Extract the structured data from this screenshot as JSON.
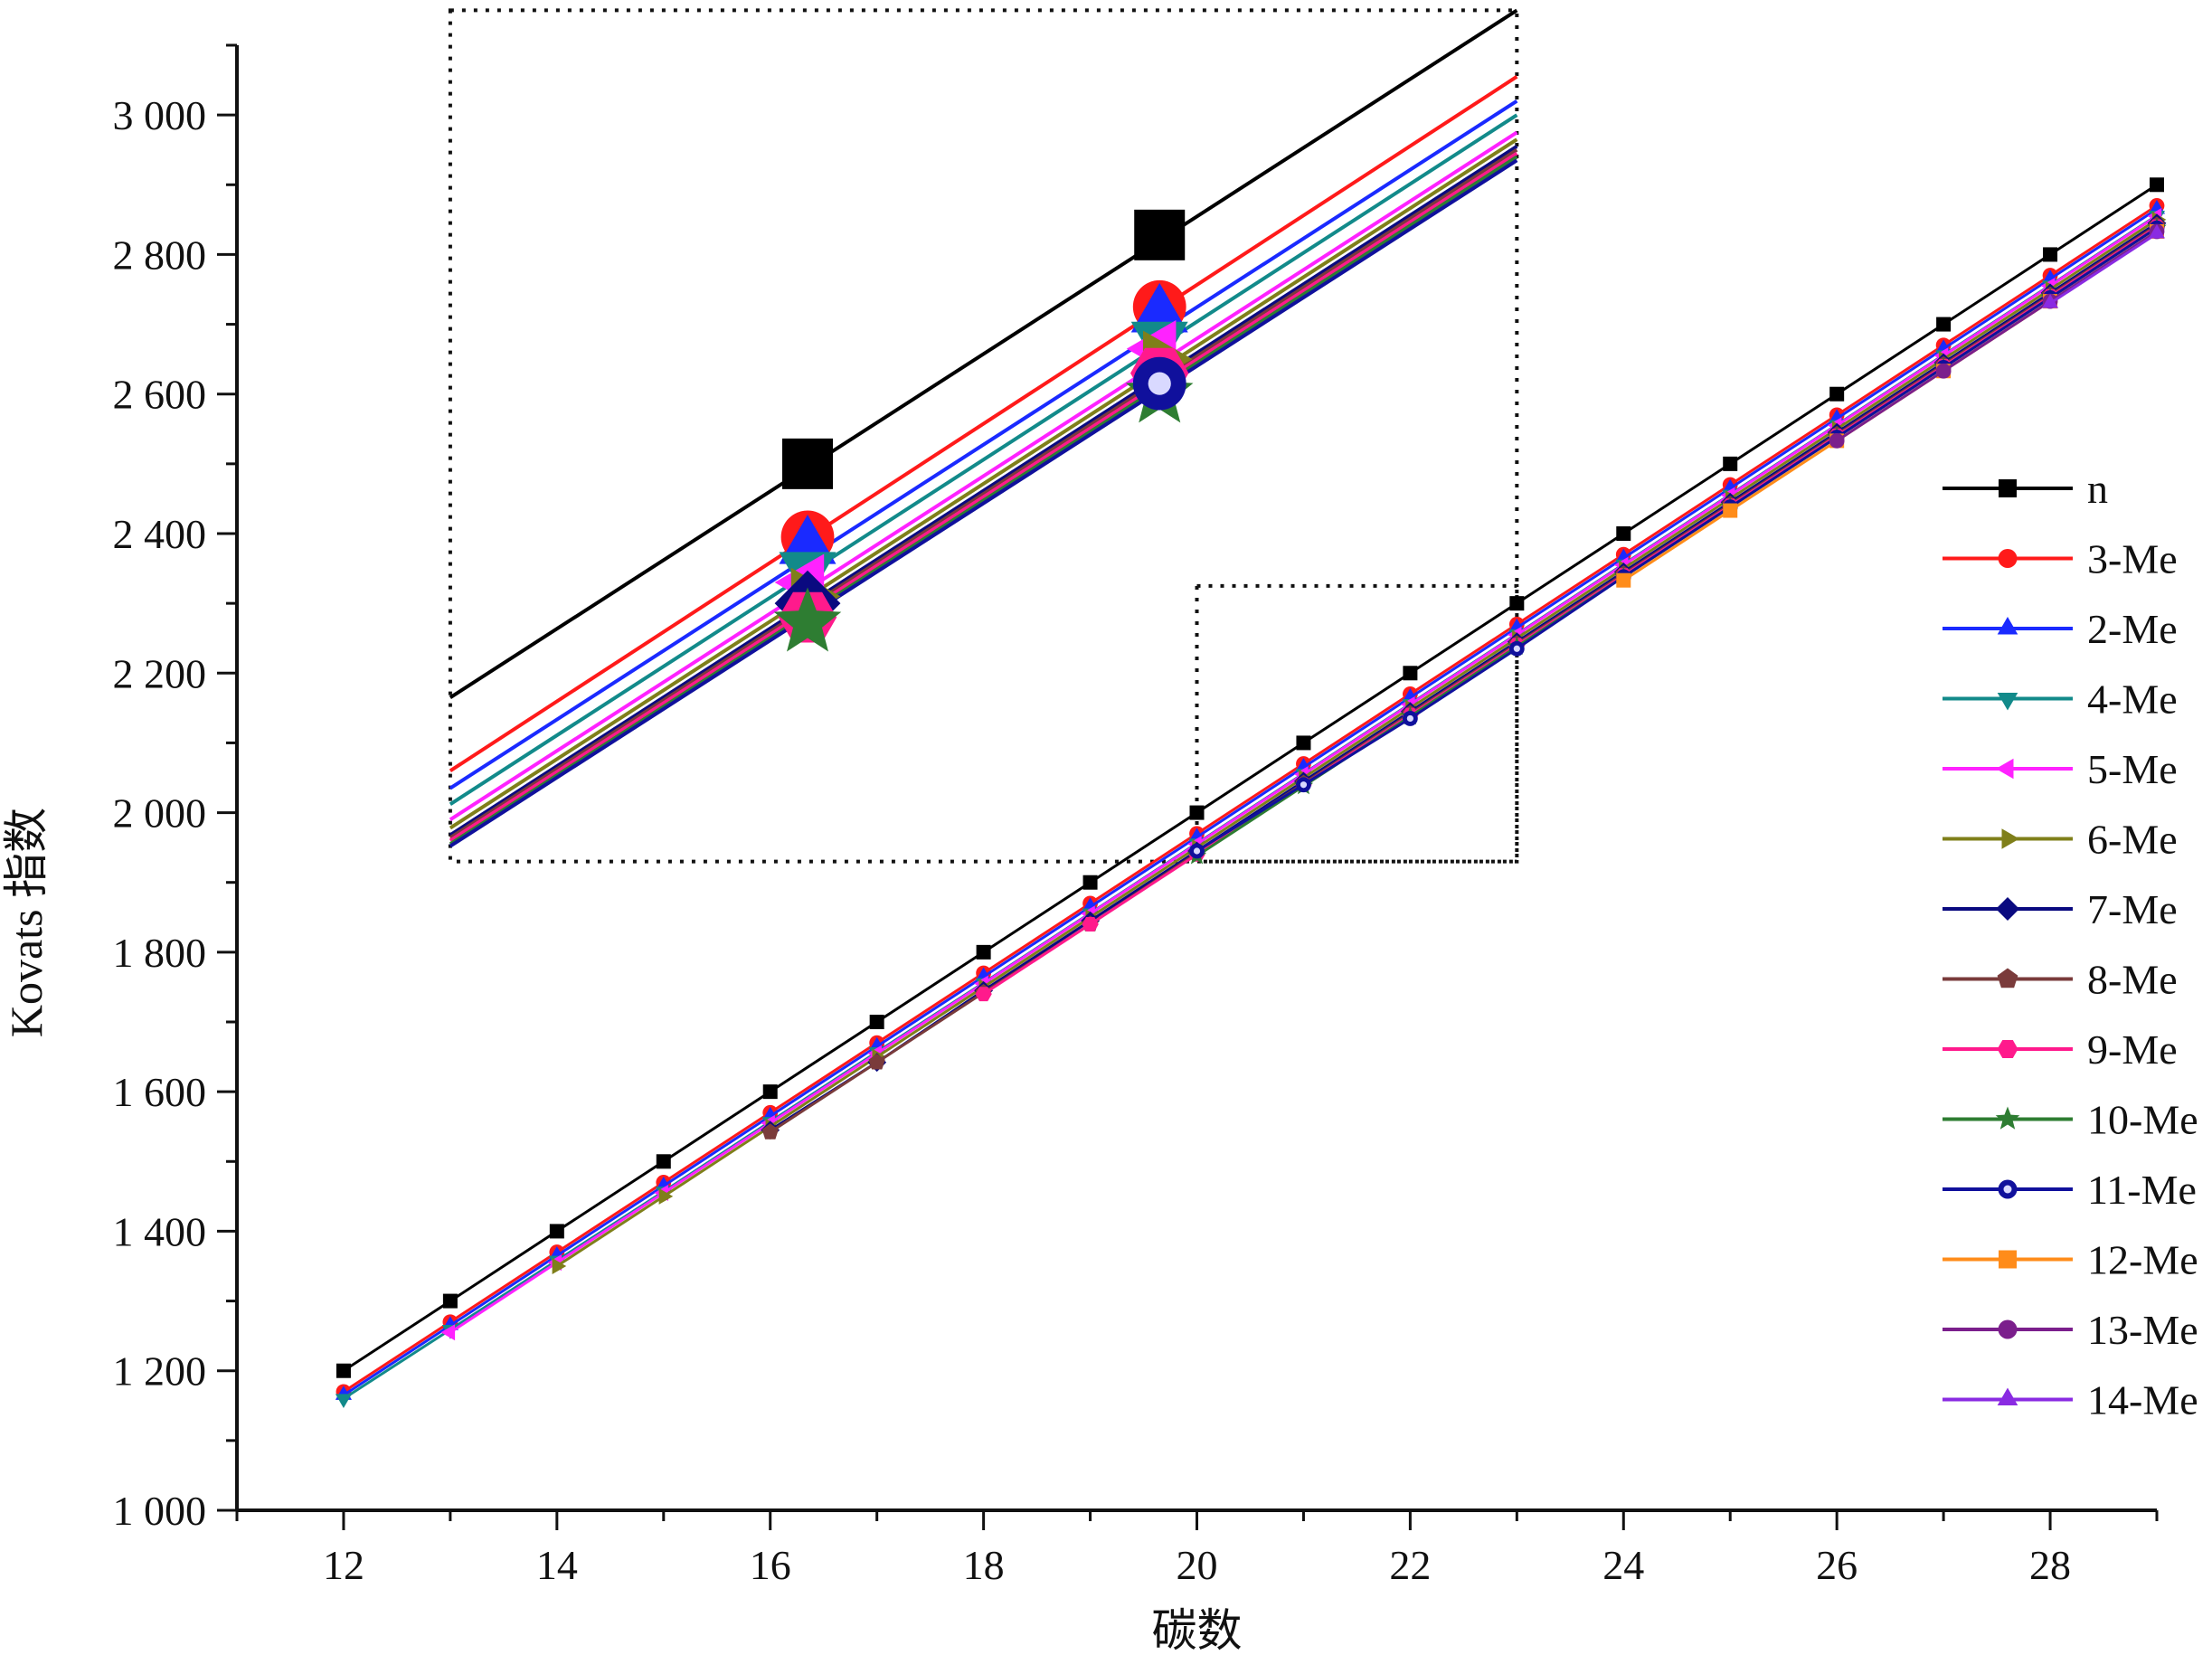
{
  "chart_data": {
    "type": "line",
    "xlabel": "碳数",
    "ylabel": "Kovats 指数",
    "xlim": [
      11,
      29
    ],
    "ylim": [
      1000,
      3100
    ],
    "x_ticks": [
      12,
      14,
      16,
      18,
      20,
      22,
      24,
      26,
      28
    ],
    "x_tick_labels": [
      "12",
      "14",
      "16",
      "18",
      "20",
      "22",
      "24",
      "26",
      "28"
    ],
    "y_ticks": [
      1000,
      1200,
      1400,
      1600,
      1800,
      2000,
      2200,
      2400,
      2600,
      2800,
      3000
    ],
    "y_tick_labels": [
      "1 000",
      "1 200",
      "1 400",
      "1 600",
      "1 800",
      "2 000",
      "2 200",
      "2 400",
      "2 600",
      "2 800",
      "3 000"
    ],
    "grid": false,
    "legend_position": "right",
    "series": [
      {
        "name": "n",
        "color": "#000000",
        "marker": "square",
        "x": [
          12,
          13,
          14,
          15,
          16,
          17,
          18,
          19,
          20,
          21,
          22,
          23,
          24,
          25,
          26,
          27,
          28,
          29
        ],
        "values": [
          1200,
          1300,
          1400,
          1500,
          1600,
          1700,
          1800,
          1900,
          2000,
          2100,
          2200,
          2300,
          2400,
          2500,
          2600,
          2700,
          2800,
          2900
        ]
      },
      {
        "name": "3-Me",
        "color": "#ff1a1a",
        "marker": "circle",
        "x": [
          12,
          13,
          14,
          15,
          16,
          17,
          18,
          19,
          20,
          21,
          22,
          23,
          24,
          25,
          26,
          27,
          28,
          29
        ],
        "values": [
          1170,
          1270,
          1370,
          1470,
          1570,
          1670,
          1770,
          1870,
          1970,
          2070,
          2170,
          2270,
          2370,
          2470,
          2570,
          2670,
          2770,
          2870
        ]
      },
      {
        "name": "2-Me",
        "color": "#1a2aff",
        "marker": "triangle-up",
        "x": [
          12,
          13,
          14,
          15,
          16,
          17,
          18,
          19,
          20,
          21,
          22,
          23,
          24,
          25,
          26,
          27,
          28,
          29
        ],
        "values": [
          1165,
          1265,
          1365,
          1465,
          1565,
          1665,
          1765,
          1865,
          1965,
          2065,
          2165,
          2265,
          2365,
          2465,
          2565,
          2665,
          2765,
          2865
        ]
      },
      {
        "name": "4-Me",
        "color": "#128a8a",
        "marker": "triangle-down",
        "x": [
          12,
          13,
          14,
          15,
          16,
          17,
          18,
          19,
          20,
          21,
          22,
          23,
          24,
          25,
          26,
          27,
          28,
          29
        ],
        "values": [
          1160,
          1259,
          1358,
          1457,
          1557,
          1657,
          1756,
          1856,
          1956,
          2056,
          2156,
          2256,
          2356,
          2456,
          2556,
          2656,
          2756,
          2856
        ]
      },
      {
        "name": "5-Me",
        "color": "#ff22ff",
        "marker": "triangle-left",
        "x": [
          13,
          14,
          15,
          16,
          17,
          18,
          19,
          20,
          21,
          22,
          23,
          24,
          25,
          26,
          27,
          28,
          29
        ],
        "values": [
          1255,
          1355,
          1455,
          1555,
          1655,
          1755,
          1855,
          1955,
          2055,
          2155,
          2255,
          2355,
          2455,
          2555,
          2655,
          2755,
          2855
        ]
      },
      {
        "name": "6-Me",
        "color": "#7f7f1a",
        "marker": "triangle-right",
        "x": [
          14,
          15,
          16,
          17,
          18,
          19,
          20,
          21,
          22,
          23,
          24,
          25,
          26,
          27,
          28,
          29
        ],
        "values": [
          1350,
          1450,
          1550,
          1650,
          1750,
          1850,
          1950,
          2050,
          2150,
          2250,
          2350,
          2450,
          2550,
          2650,
          2750,
          2850
        ]
      },
      {
        "name": "7-Me",
        "color": "#0a0a80",
        "marker": "diamond",
        "x": [
          16,
          17,
          18,
          19,
          20,
          21,
          22,
          23,
          24,
          25,
          26,
          27,
          28,
          29
        ],
        "values": [
          1545,
          1642,
          1745,
          1845,
          1945,
          2045,
          2145,
          2245,
          2345,
          2445,
          2545,
          2645,
          2745,
          2845
        ]
      },
      {
        "name": "8-Me",
        "color": "#7a3b3b",
        "marker": "pentagon",
        "x": [
          16,
          17,
          18,
          19,
          20,
          21,
          22,
          23,
          24,
          25,
          26,
          27,
          28,
          29
        ],
        "values": [
          1542,
          1642,
          1742,
          1840,
          1942,
          2042,
          2142,
          2242,
          2342,
          2442,
          2542,
          2642,
          2742,
          2842
        ]
      },
      {
        "name": "9-Me",
        "color": "#ff1a8c",
        "marker": "hexagon",
        "x": [
          18,
          19,
          20,
          21,
          22,
          23,
          24,
          25,
          26,
          27,
          28,
          29
        ],
        "values": [
          1740,
          1840,
          1940,
          2040,
          2140,
          2240,
          2340,
          2440,
          2540,
          2640,
          2740,
          2840
        ]
      },
      {
        "name": "10-Me",
        "color": "#2e7d32",
        "marker": "star",
        "x": [
          20,
          21,
          22,
          23,
          24,
          25,
          26,
          27,
          28,
          29
        ],
        "values": [
          1938,
          2038,
          2138,
          2238,
          2338,
          2438,
          2538,
          2638,
          2738,
          2838
        ]
      },
      {
        "name": "11-Me",
        "color": "#10109c",
        "marker": "half-circle",
        "x": [
          20,
          21,
          22,
          23,
          24,
          25,
          26,
          27,
          28,
          29
        ],
        "values": [
          1945,
          2040,
          2135,
          2235,
          2338,
          2438,
          2538,
          2638,
          2738,
          2838
        ]
      },
      {
        "name": "12-Me",
        "color": "#ff8c1a",
        "marker": "square",
        "x": [
          24,
          25,
          26,
          27,
          28,
          29
        ],
        "values": [
          2333,
          2433,
          2533,
          2633,
          2733,
          2833
        ]
      },
      {
        "name": "13-Me",
        "color": "#7b1f8c",
        "marker": "circle",
        "x": [
          26,
          27,
          28,
          29
        ],
        "values": [
          2533,
          2633,
          2733,
          2833
        ]
      },
      {
        "name": "14-Me",
        "color": "#8a2be2",
        "marker": "triangle-up",
        "x": [
          28,
          29
        ],
        "values": [
          2730,
          2830
        ]
      }
    ],
    "inset": {
      "source_region": {
        "x": [
          20,
          23
        ],
        "y": [
          1930,
          2325
        ]
      },
      "display_region": {
        "x": [
          13,
          23
        ],
        "y": [
          1930,
          3150
        ]
      },
      "lines": [
        {
          "name": "n",
          "y_at_x13": 2165,
          "y_at_x23": 3150
        },
        {
          "name": "3-Me",
          "y_at_x13": 2060,
          "y_at_x23": 3055
        },
        {
          "name": "2-Me",
          "y_at_x13": 2035,
          "y_at_x23": 3020
        },
        {
          "name": "4-Me",
          "y_at_x13": 2012,
          "y_at_x23": 3000
        },
        {
          "name": "5-Me",
          "y_at_x13": 1990,
          "y_at_x23": 2975
        },
        {
          "name": "6-Me",
          "y_at_x13": 1978,
          "y_at_x23": 2965
        },
        {
          "name": "7-Me",
          "y_at_x13": 1968,
          "y_at_x23": 2955
        },
        {
          "name": "8-Me",
          "y_at_x13": 1964,
          "y_at_x23": 2950
        },
        {
          "name": "9-Me",
          "y_at_x13": 1960,
          "y_at_x23": 2945
        },
        {
          "name": "10-Me",
          "y_at_x13": 1955,
          "y_at_x23": 2940
        },
        {
          "name": "11-Me",
          "y_at_x13": 1952,
          "y_at_x23": 2935
        }
      ],
      "markers_at_x16": [
        {
          "name": "n",
          "y": 2500
        },
        {
          "name": "3-Me",
          "y": 2395
        },
        {
          "name": "2-Me",
          "y": 2380
        },
        {
          "name": "4-Me",
          "y": 2350
        },
        {
          "name": "5-Me",
          "y": 2330
        },
        {
          "name": "6-Me",
          "y": 2310
        },
        {
          "name": "7-Me",
          "y": 2300
        },
        {
          "name": "9-Me",
          "y": 2280
        },
        {
          "name": "10-Me",
          "y": 2272
        }
      ],
      "markers_at_x19": [
        {
          "name": "n",
          "y": 2828
        },
        {
          "name": "3-Me",
          "y": 2725
        },
        {
          "name": "2-Me",
          "y": 2712
        },
        {
          "name": "4-Me",
          "y": 2680
        },
        {
          "name": "5-Me",
          "y": 2665
        },
        {
          "name": "6-Me",
          "y": 2650
        },
        {
          "name": "9-Me",
          "y": 2630
        },
        {
          "name": "10-Me",
          "y": 2600
        },
        {
          "name": "11-Me",
          "y": 2615
        }
      ]
    }
  }
}
